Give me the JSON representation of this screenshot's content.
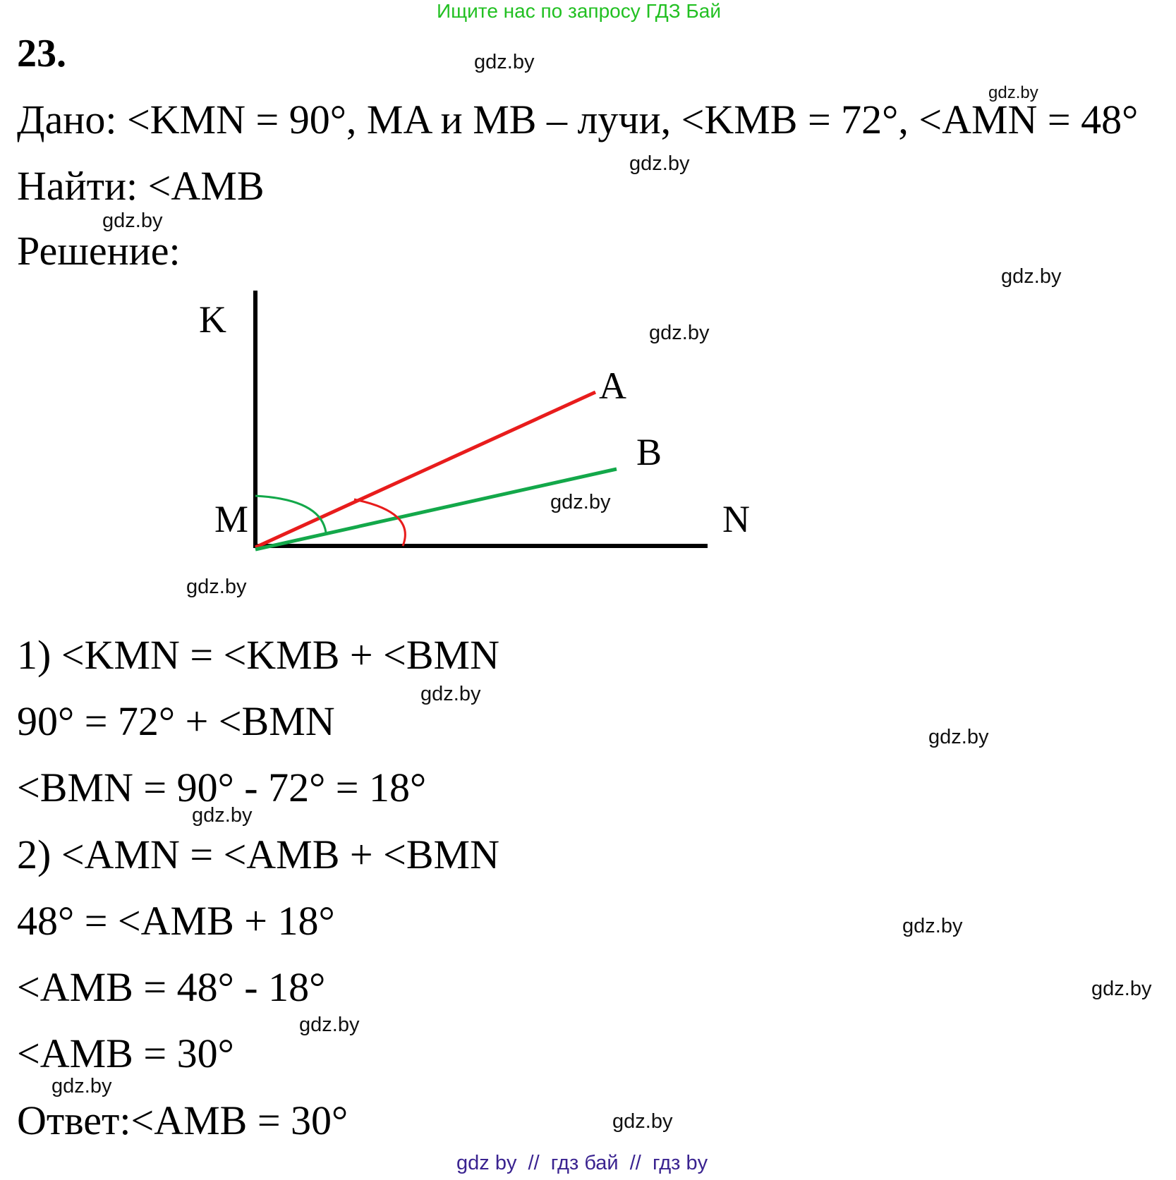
{
  "header": {
    "text": "Ищите нас по запросу ГДЗ Бай"
  },
  "task": {
    "number": "23.",
    "given": "Дано: <KMN = 90°, MA и MB – лучи, <KMB = 72°, <AMN = 48°",
    "find": "Найти: <AMB",
    "solution_label": "Решение:"
  },
  "figure": {
    "labels": {
      "K": "K",
      "A": "A",
      "B": "B",
      "M": "M",
      "N": "N"
    },
    "colors": {
      "axes": "#000000",
      "ray_a": "#e81c1c",
      "ray_b": "#13a84a"
    },
    "angles_deg": {
      "KMN": 90,
      "KMB": 72,
      "AMN": 48
    }
  },
  "steps": [
    "1) <KMN = <KMB + <BMN",
    "90° = 72° + <BMN",
    "<BMN = 90° - 72° = 18°",
    "2) <AMN = <AMB + <BMN",
    "48° = <AMB + 18°",
    "<AMB = 48° - 18°",
    "<AMB = 30°"
  ],
  "answer": "Ответ:<AMB = 30°",
  "watermark": "gdz.by",
  "footer": {
    "text": "gdz by  //  гдз бай  //  гдз by"
  }
}
